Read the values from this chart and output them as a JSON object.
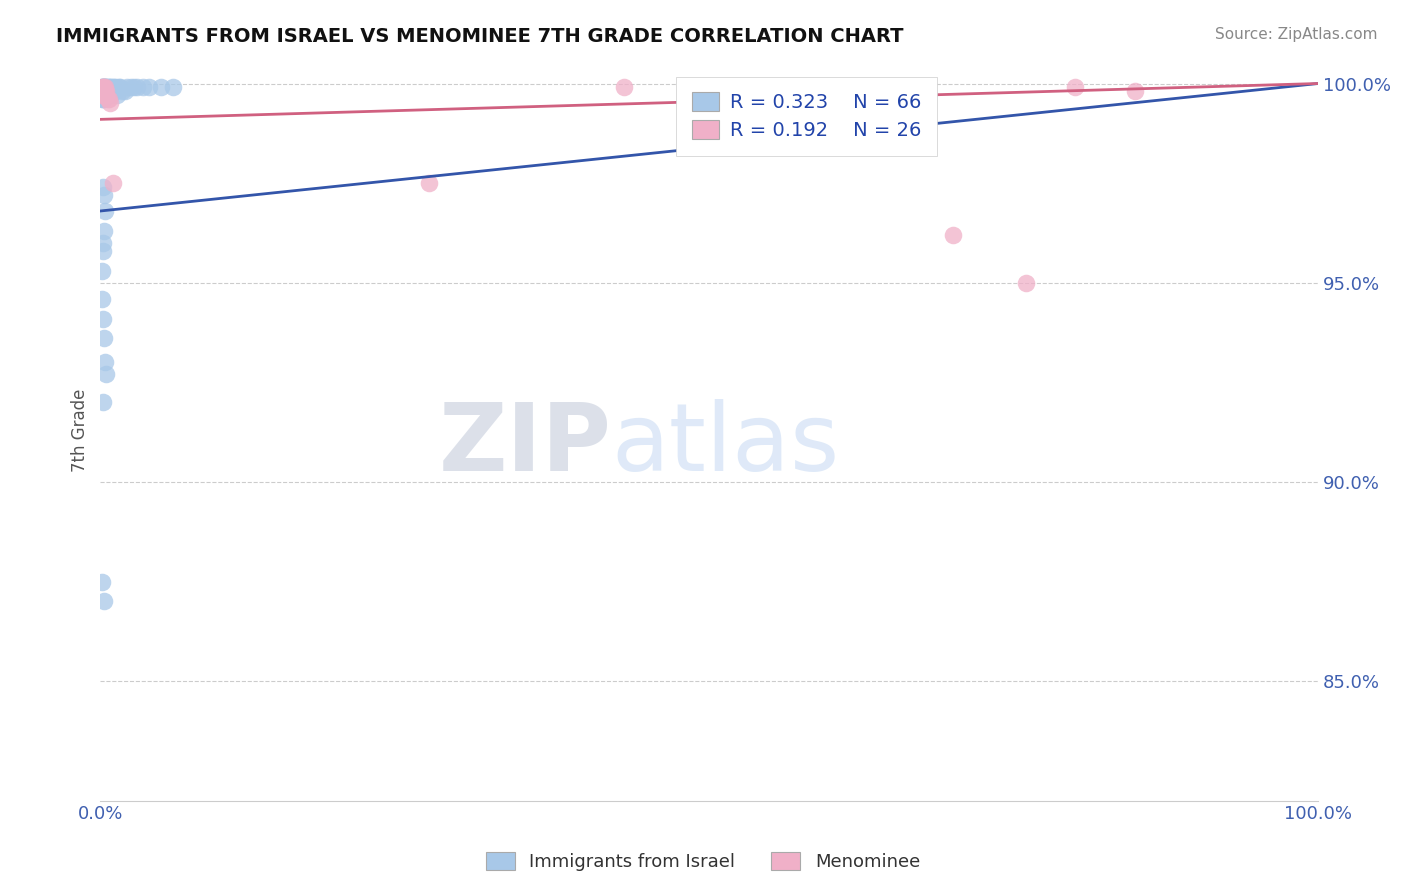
{
  "title": "IMMIGRANTS FROM ISRAEL VS MENOMINEE 7TH GRADE CORRELATION CHART",
  "source": "Source: ZipAtlas.com",
  "ylabel": "7th Grade",
  "xlim": [
    0.0,
    1.0
  ],
  "ylim": [
    0.82,
    1.006
  ],
  "ytick_labels": [
    "85.0%",
    "90.0%",
    "95.0%",
    "100.0%"
  ],
  "ytick_values": [
    0.85,
    0.9,
    0.95,
    1.0
  ],
  "r_blue": 0.323,
  "n_blue": 66,
  "r_pink": 0.192,
  "n_pink": 26,
  "legend_labels": [
    "Immigrants from Israel",
    "Menominee"
  ],
  "blue_color": "#a8c8e8",
  "pink_color": "#f0b0c8",
  "blue_line_color": "#3355aa",
  "pink_line_color": "#d06080",
  "watermark_zip": "ZIP",
  "watermark_atlas": "atlas",
  "title_fontsize": 14,
  "blue_x": [
    0.001,
    0.001,
    0.001,
    0.001,
    0.001,
    0.002,
    0.002,
    0.002,
    0.002,
    0.002,
    0.002,
    0.003,
    0.003,
    0.003,
    0.003,
    0.003,
    0.004,
    0.004,
    0.004,
    0.004,
    0.005,
    0.005,
    0.005,
    0.005,
    0.006,
    0.006,
    0.006,
    0.007,
    0.007,
    0.008,
    0.008,
    0.009,
    0.009,
    0.01,
    0.01,
    0.011,
    0.012,
    0.013,
    0.014,
    0.015,
    0.016,
    0.018,
    0.02,
    0.022,
    0.025,
    0.028,
    0.03,
    0.035,
    0.04,
    0.05,
    0.002,
    0.003,
    0.004,
    0.003,
    0.002,
    0.001,
    0.001,
    0.002,
    0.003,
    0.004,
    0.005,
    0.002,
    0.001,
    0.003,
    0.002,
    0.06
  ],
  "blue_y": [
    0.999,
    0.998,
    0.997,
    0.996,
    0.999,
    0.999,
    0.998,
    0.997,
    0.996,
    0.998,
    0.999,
    0.999,
    0.998,
    0.997,
    0.996,
    0.998,
    0.999,
    0.998,
    0.997,
    0.999,
    0.999,
    0.998,
    0.997,
    0.999,
    0.999,
    0.998,
    0.997,
    0.999,
    0.998,
    0.999,
    0.998,
    0.999,
    0.997,
    0.999,
    0.998,
    0.999,
    0.998,
    0.999,
    0.997,
    0.999,
    0.999,
    0.998,
    0.998,
    0.999,
    0.999,
    0.999,
    0.999,
    0.999,
    0.999,
    0.999,
    0.974,
    0.972,
    0.968,
    0.963,
    0.958,
    0.953,
    0.946,
    0.941,
    0.936,
    0.93,
    0.927,
    0.92,
    0.875,
    0.87,
    0.96,
    0.999
  ],
  "pink_x": [
    0.001,
    0.001,
    0.001,
    0.002,
    0.002,
    0.002,
    0.003,
    0.003,
    0.004,
    0.004,
    0.005,
    0.005,
    0.006,
    0.007,
    0.008,
    0.01,
    0.27,
    0.43,
    0.53,
    0.58,
    0.63,
    0.66,
    0.7,
    0.76,
    0.8,
    0.85
  ],
  "pink_y": [
    0.999,
    0.998,
    0.997,
    0.999,
    0.998,
    0.997,
    0.999,
    0.997,
    0.999,
    0.998,
    0.998,
    0.997,
    0.996,
    0.996,
    0.995,
    0.975,
    0.975,
    0.999,
    0.999,
    0.999,
    0.999,
    0.998,
    0.962,
    0.95,
    0.999,
    0.998
  ],
  "blue_trend_x": [
    0.0,
    1.0
  ],
  "blue_trend_y": [
    0.968,
    1.0
  ],
  "pink_trend_x": [
    0.0,
    1.0
  ],
  "pink_trend_y": [
    0.991,
    1.0
  ]
}
